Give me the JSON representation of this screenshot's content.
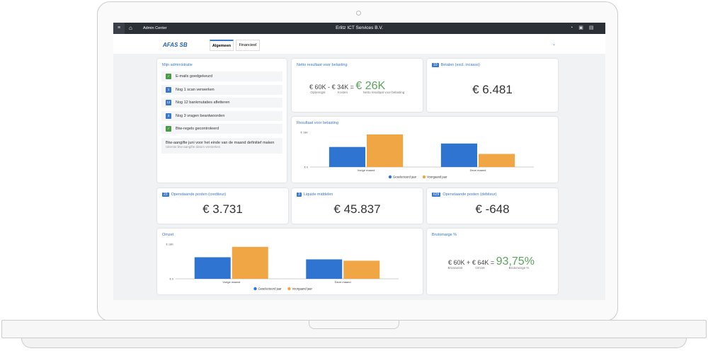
{
  "topbar": {
    "app": "Admin Center",
    "company": "Erlitz ICT Services B.V."
  },
  "logo": "AFAS SB",
  "tabs": [
    "Algemeen",
    "Financieel"
  ],
  "admin": {
    "title": "Mijn administratie",
    "items": [
      {
        "icon": "✓",
        "text": "E-mails goedgekeurd"
      },
      {
        "icon": "1",
        "text": "Nog 1 scan verwerken"
      },
      {
        "icon": "12",
        "text": "Nog 12 bankmutaties afletteren"
      },
      {
        "icon": "3",
        "text": "Nog 3 vragen beantwoorden"
      },
      {
        "icon": "✓",
        "text": "Btw-regels gecontroleerd"
      }
    ],
    "task": {
      "text": "Btw-aangifte juni voor het einde van de maand definitief maken",
      "sub": "Uiterste btw-aangifte datum verstreken"
    }
  },
  "netto": {
    "title": "Netto resultaat voor belasting",
    "a": "€ 60K",
    "op1": "-",
    "b": "€ 34K",
    "op2": "=",
    "result": "€ 26K",
    "la": "Opbrengst",
    "lb": "Kosten",
    "lr": "Netto resultaat voor belasting"
  },
  "kpis": [
    {
      "badge": "10",
      "title": "Betalen (excl. incasso)",
      "value": "€ 6.481"
    },
    {
      "badge": "23",
      "title": "Openstaande posten (crediteur)",
      "value": "€ 3.731"
    },
    {
      "badge": "3",
      "title": "Liquide middelen",
      "value": "€ 45.837"
    },
    {
      "badge": "629",
      "title": "Openstaande posten (debiteur)",
      "value": "€ -648"
    }
  ],
  "bruto": {
    "title": "Brutomarge %",
    "a": "€ 60K",
    "op1": "+",
    "b": "€ 64K",
    "op2": "=",
    "result": "93,75%",
    "la": "Brutowinst",
    "lb": "Omzet",
    "lr": "Brutomarge %"
  },
  "charts": [
    {
      "type": "bar",
      "title": "Resultaat voor belasting",
      "categories": [
        "Vorige maand",
        "Deze maand"
      ],
      "series": [
        {
          "name": "Geselecteerd jaar",
          "color": "#2f74d0",
          "values": [
            10.4,
            12.2
          ]
        },
        {
          "name": "Voorgaand jaar",
          "color": "#f0a644",
          "values": [
            16.9,
            6.8
          ]
        }
      ],
      "ylim": [
        0,
        18
      ],
      "yticks": [
        {
          "value": 0,
          "label": "€ 0"
        },
        {
          "value": 18,
          "label": "€ 18K"
        }
      ]
    },
    {
      "type": "bar",
      "title": "Omzet",
      "categories": [
        "Vorige maand",
        "Deze maand"
      ],
      "series": [
        {
          "name": "Geselecteerd jaar",
          "color": "#2f74d0",
          "values": [
            11.2,
            10.1
          ]
        },
        {
          "name": "Voorgaand jaar",
          "color": "#f0a644",
          "values": [
            16.6,
            9.4
          ]
        }
      ],
      "ylim": [
        0,
        18
      ],
      "yticks": [
        {
          "value": 0,
          "label": "€ 0"
        },
        {
          "value": 18,
          "label": "€ 18K"
        }
      ]
    }
  ]
}
